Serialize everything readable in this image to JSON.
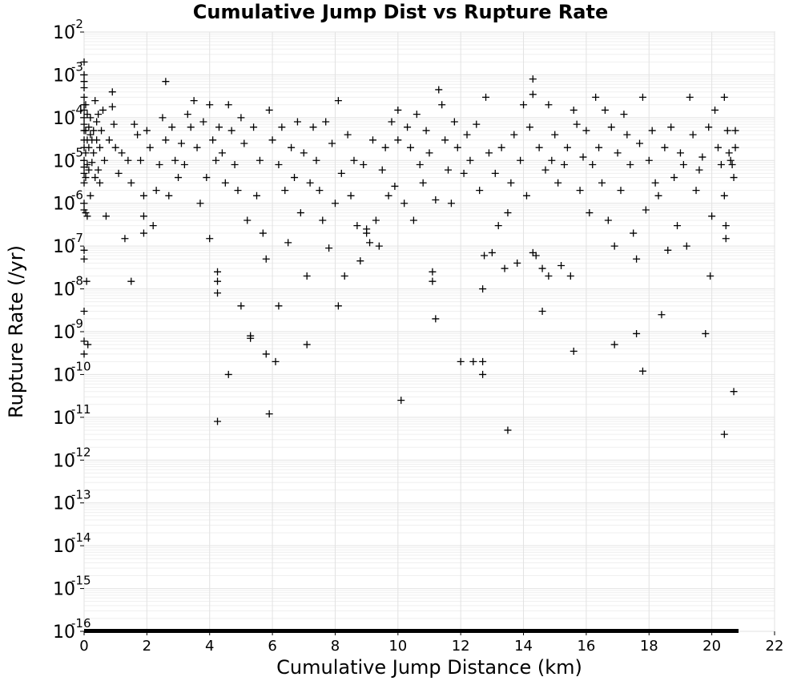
{
  "chart_data": {
    "type": "scatter",
    "title": "Cumulative Jump Dist vs Rupture Rate",
    "xlabel": "Cumulative Jump Distance (km)",
    "ylabel": "Rupture Rate (/yr)",
    "xlim": [
      0,
      22
    ],
    "ylim": [
      1e-16,
      0.01
    ],
    "yscale": "log",
    "grid": true,
    "marker": "+",
    "marker_color": "#000000",
    "xticks": [
      "0",
      "2",
      "4",
      "6",
      "8",
      "10",
      "12",
      "14",
      "16",
      "18",
      "20",
      "22"
    ],
    "yticks": [
      {
        "base": "10",
        "exp": "-2"
      },
      {
        "base": "10",
        "exp": "-3"
      },
      {
        "base": "10",
        "exp": "-4"
      },
      {
        "base": "10",
        "exp": "-5"
      },
      {
        "base": "10",
        "exp": "-6"
      },
      {
        "base": "10",
        "exp": "-7"
      },
      {
        "base": "10",
        "exp": "-8"
      },
      {
        "base": "10",
        "exp": "-9"
      },
      {
        "base": "10",
        "exp": "-10"
      },
      {
        "base": "10",
        "exp": "-11"
      },
      {
        "base": "10",
        "exp": "-12"
      },
      {
        "base": "10",
        "exp": "-13"
      },
      {
        "base": "10",
        "exp": "-14"
      },
      {
        "base": "10",
        "exp": "-15"
      },
      {
        "base": "10",
        "exp": "-16"
      }
    ],
    "points": [
      [
        0,
        0.002
      ],
      [
        0,
        0.001
      ],
      [
        0,
        0.0007
      ],
      [
        0,
        0.0005
      ],
      [
        0,
        0.0003
      ],
      [
        0,
        0.0002
      ],
      [
        0,
        0.00015
      ],
      [
        0,
        0.0001
      ],
      [
        0,
        7e-05
      ],
      [
        0,
        5e-05
      ],
      [
        0,
        3e-05
      ],
      [
        0,
        2e-05
      ],
      [
        0,
        1e-05
      ],
      [
        0,
        7e-06
      ],
      [
        0,
        5e-06
      ],
      [
        0,
        3e-06
      ],
      [
        0,
        1e-06
      ],
      [
        0,
        7e-07
      ],
      [
        0,
        8e-08
      ],
      [
        0,
        5e-08
      ],
      [
        0,
        3e-09
      ],
      [
        0,
        6e-10
      ],
      [
        0,
        3e-10
      ],
      [
        0.05,
        0.0002
      ],
      [
        0.05,
        5e-05
      ],
      [
        0.05,
        1.5e-05
      ],
      [
        0.05,
        4e-06
      ],
      [
        0.05,
        6e-07
      ],
      [
        0.08,
        1.5e-08
      ],
      [
        0.1,
        0.00012
      ],
      [
        0.1,
        3e-05
      ],
      [
        0.1,
        8e-06
      ],
      [
        0.1,
        5e-07
      ],
      [
        0.12,
        5e-10
      ],
      [
        0.15,
        6e-05
      ],
      [
        0.15,
        2e-05
      ],
      [
        0.15,
        6e-06
      ],
      [
        0.2,
        0.0001
      ],
      [
        0.2,
        4e-05
      ],
      [
        0.2,
        1.5e-06
      ],
      [
        0.25,
        3e-05
      ],
      [
        0.25,
        9e-06
      ],
      [
        0.3,
        5e-05
      ],
      [
        0.3,
        1.5e-05
      ],
      [
        0.35,
        0.00025
      ],
      [
        0.35,
        4e-06
      ],
      [
        0.4,
        8e-05
      ],
      [
        0.4,
        3e-05
      ],
      [
        0.45,
        0.00012
      ],
      [
        0.45,
        6e-06
      ],
      [
        0.5,
        2e-05
      ],
      [
        0.5,
        3e-06
      ],
      [
        0.55,
        5e-05
      ],
      [
        0.6,
        0.00015
      ],
      [
        0.65,
        1e-05
      ],
      [
        0.7,
        5e-07
      ],
      [
        0.8,
        3e-05
      ],
      [
        0.9,
        0.0004
      ],
      [
        0.9,
        0.00018
      ],
      [
        0.95,
        7e-05
      ],
      [
        1.0,
        2e-05
      ],
      [
        1.1,
        5e-06
      ],
      [
        1.2,
        1.5e-05
      ],
      [
        1.3,
        1.5e-07
      ],
      [
        1.4,
        1e-05
      ],
      [
        1.5,
        1.5e-08
      ],
      [
        1.5,
        3e-06
      ],
      [
        1.6,
        7e-05
      ],
      [
        1.7,
        4e-05
      ],
      [
        1.8,
        1e-05
      ],
      [
        1.9,
        5e-07
      ],
      [
        1.9,
        1.5e-06
      ],
      [
        1.9,
        2e-07
      ],
      [
        2.0,
        5e-05
      ],
      [
        2.1,
        2e-05
      ],
      [
        2.2,
        3e-07
      ],
      [
        2.3,
        2e-06
      ],
      [
        2.4,
        8e-06
      ],
      [
        2.5,
        0.0001
      ],
      [
        2.6,
        0.0007
      ],
      [
        2.6,
        3e-05
      ],
      [
        2.7,
        1.5e-06
      ],
      [
        2.8,
        6e-05
      ],
      [
        2.9,
        1e-05
      ],
      [
        3.0,
        4e-06
      ],
      [
        3.1,
        2.5e-05
      ],
      [
        3.2,
        8e-06
      ],
      [
        3.3,
        0.00012
      ],
      [
        3.4,
        6e-05
      ],
      [
        3.5,
        0.00025
      ],
      [
        3.6,
        2e-05
      ],
      [
        3.7,
        1e-06
      ],
      [
        3.8,
        8e-05
      ],
      [
        3.9,
        4e-06
      ],
      [
        4.0,
        1.5e-07
      ],
      [
        4.0,
        0.0002
      ],
      [
        4.1,
        3e-05
      ],
      [
        4.2,
        1e-05
      ],
      [
        4.25,
        2.5e-08
      ],
      [
        4.25,
        1.5e-08
      ],
      [
        4.25,
        8e-09
      ],
      [
        4.25,
        8e-12
      ],
      [
        4.3,
        6e-05
      ],
      [
        4.4,
        1.5e-05
      ],
      [
        4.5,
        3e-06
      ],
      [
        4.6,
        1e-10
      ],
      [
        4.6,
        0.0002
      ],
      [
        4.7,
        5e-05
      ],
      [
        4.8,
        8e-06
      ],
      [
        4.9,
        2e-06
      ],
      [
        5.0,
        4e-09
      ],
      [
        5.0,
        0.0001
      ],
      [
        5.1,
        2.5e-05
      ],
      [
        5.2,
        4e-07
      ],
      [
        5.3,
        8e-10
      ],
      [
        5.3,
        7e-10
      ],
      [
        5.4,
        6e-05
      ],
      [
        5.5,
        1.5e-06
      ],
      [
        5.6,
        1e-05
      ],
      [
        5.7,
        2e-07
      ],
      [
        5.8,
        5e-08
      ],
      [
        5.8,
        3e-10
      ],
      [
        5.9,
        1.2e-11
      ],
      [
        5.9,
        0.00015
      ],
      [
        6.0,
        3e-05
      ],
      [
        6.1,
        2e-10
      ],
      [
        6.2,
        4e-09
      ],
      [
        6.2,
        8e-06
      ],
      [
        6.3,
        6e-05
      ],
      [
        6.4,
        2e-06
      ],
      [
        6.5,
        1.2e-07
      ],
      [
        6.6,
        2e-05
      ],
      [
        6.7,
        4e-06
      ],
      [
        6.8,
        8e-05
      ],
      [
        6.9,
        6e-07
      ],
      [
        7.0,
        1.5e-05
      ],
      [
        7.1,
        5e-10
      ],
      [
        7.1,
        2e-08
      ],
      [
        7.2,
        3e-06
      ],
      [
        7.3,
        6e-05
      ],
      [
        7.4,
        1e-05
      ],
      [
        7.5,
        2e-06
      ],
      [
        7.6,
        4e-07
      ],
      [
        7.7,
        8e-05
      ],
      [
        7.8,
        9e-08
      ],
      [
        7.9,
        2.5e-05
      ],
      [
        8.0,
        1e-06
      ],
      [
        8.1,
        0.00025
      ],
      [
        8.1,
        4e-09
      ],
      [
        8.2,
        5e-06
      ],
      [
        8.3,
        2e-08
      ],
      [
        8.4,
        4e-05
      ],
      [
        8.5,
        1.5e-06
      ],
      [
        8.6,
        1e-05
      ],
      [
        8.7,
        3e-07
      ],
      [
        8.8,
        4.5e-08
      ],
      [
        8.9,
        8e-06
      ],
      [
        9.0,
        2e-07
      ],
      [
        9.0,
        2.5e-07
      ],
      [
        9.1,
        1.2e-07
      ],
      [
        9.2,
        3e-05
      ],
      [
        9.3,
        4e-07
      ],
      [
        9.4,
        1e-07
      ],
      [
        9.5,
        6e-06
      ],
      [
        9.6,
        2e-05
      ],
      [
        9.7,
        1.5e-06
      ],
      [
        9.8,
        8e-05
      ],
      [
        9.9,
        2.5e-06
      ],
      [
        10.0,
        0.00015
      ],
      [
        10.0,
        3e-05
      ],
      [
        10.1,
        2.5e-11
      ],
      [
        10.2,
        1e-06
      ],
      [
        10.3,
        6e-05
      ],
      [
        10.4,
        2e-05
      ],
      [
        10.5,
        4e-07
      ],
      [
        10.6,
        0.00012
      ],
      [
        10.7,
        8e-06
      ],
      [
        10.8,
        3e-06
      ],
      [
        10.9,
        5e-05
      ],
      [
        11.0,
        1.5e-05
      ],
      [
        11.1,
        2.5e-08
      ],
      [
        11.1,
        1.5e-08
      ],
      [
        11.2,
        2e-09
      ],
      [
        11.2,
        1.2e-06
      ],
      [
        11.3,
        0.00045
      ],
      [
        11.4,
        0.0002
      ],
      [
        11.5,
        3e-05
      ],
      [
        11.6,
        6e-06
      ],
      [
        11.7,
        1e-06
      ],
      [
        11.8,
        8e-05
      ],
      [
        11.9,
        2e-05
      ],
      [
        12.0,
        2e-10
      ],
      [
        12.1,
        5e-06
      ],
      [
        12.2,
        4e-05
      ],
      [
        12.3,
        1e-05
      ],
      [
        12.4,
        2e-10
      ],
      [
        12.5,
        7e-05
      ],
      [
        12.6,
        2e-06
      ],
      [
        12.7,
        2e-10
      ],
      [
        12.7,
        1e-10
      ],
      [
        12.7,
        1e-08
      ],
      [
        12.75,
        6e-08
      ],
      [
        12.8,
        0.0003
      ],
      [
        12.9,
        1.5e-05
      ],
      [
        13.0,
        7e-08
      ],
      [
        13.1,
        5e-06
      ],
      [
        13.2,
        3e-07
      ],
      [
        13.3,
        2e-05
      ],
      [
        13.4,
        3e-08
      ],
      [
        13.5,
        6e-07
      ],
      [
        13.5,
        5e-12
      ],
      [
        13.6,
        3e-06
      ],
      [
        13.7,
        4e-05
      ],
      [
        13.8,
        4e-08
      ],
      [
        13.9,
        1e-05
      ],
      [
        14.0,
        0.0002
      ],
      [
        14.1,
        1.5e-06
      ],
      [
        14.2,
        6e-05
      ],
      [
        14.3,
        0.0008
      ],
      [
        14.3,
        0.00035
      ],
      [
        14.3,
        7e-08
      ],
      [
        14.4,
        6e-08
      ],
      [
        14.5,
        2e-05
      ],
      [
        14.6,
        3e-08
      ],
      [
        14.6,
        3e-09
      ],
      [
        14.7,
        6e-06
      ],
      [
        14.8,
        0.0002
      ],
      [
        14.8,
        2e-08
      ],
      [
        14.9,
        1e-05
      ],
      [
        15.0,
        4e-05
      ],
      [
        15.1,
        3e-06
      ],
      [
        15.2,
        3.5e-08
      ],
      [
        15.3,
        8e-06
      ],
      [
        15.4,
        2e-05
      ],
      [
        15.5,
        2e-08
      ],
      [
        15.6,
        0.00015
      ],
      [
        15.6,
        3.5e-10
      ],
      [
        15.7,
        7e-05
      ],
      [
        15.8,
        2e-06
      ],
      [
        15.9,
        1.2e-05
      ],
      [
        16.0,
        5e-05
      ],
      [
        16.1,
        6e-07
      ],
      [
        16.2,
        8e-06
      ],
      [
        16.3,
        0.0003
      ],
      [
        16.4,
        2e-05
      ],
      [
        16.5,
        3e-06
      ],
      [
        16.6,
        0.00015
      ],
      [
        16.7,
        4e-07
      ],
      [
        16.8,
        6e-05
      ],
      [
        16.9,
        5e-10
      ],
      [
        16.9,
        1e-07
      ],
      [
        17.0,
        1.5e-05
      ],
      [
        17.1,
        2e-06
      ],
      [
        17.2,
        0.00012
      ],
      [
        17.3,
        4e-05
      ],
      [
        17.4,
        8e-06
      ],
      [
        17.5,
        2e-07
      ],
      [
        17.6,
        5e-08
      ],
      [
        17.6,
        9e-10
      ],
      [
        17.7,
        2.5e-05
      ],
      [
        17.8,
        1.2e-10
      ],
      [
        17.8,
        0.0003
      ],
      [
        17.9,
        7e-07
      ],
      [
        18.0,
        1e-05
      ],
      [
        18.1,
        5e-05
      ],
      [
        18.2,
        3e-06
      ],
      [
        18.3,
        1.5e-06
      ],
      [
        18.4,
        2.5e-09
      ],
      [
        18.5,
        2e-05
      ],
      [
        18.6,
        8e-08
      ],
      [
        18.7,
        6e-05
      ],
      [
        18.8,
        4e-06
      ],
      [
        18.9,
        3e-07
      ],
      [
        19.0,
        1.5e-05
      ],
      [
        19.1,
        8e-06
      ],
      [
        19.2,
        1e-07
      ],
      [
        19.3,
        0.0003
      ],
      [
        19.4,
        4e-05
      ],
      [
        19.5,
        2e-06
      ],
      [
        19.6,
        6e-06
      ],
      [
        19.7,
        1.2e-05
      ],
      [
        19.8,
        9e-10
      ],
      [
        19.9,
        6e-05
      ],
      [
        19.95,
        2e-08
      ],
      [
        20.0,
        5e-07
      ],
      [
        20.1,
        0.00015
      ],
      [
        20.2,
        2e-05
      ],
      [
        20.3,
        8e-06
      ],
      [
        20.4,
        1.5e-06
      ],
      [
        20.4,
        0.0003
      ],
      [
        20.4,
        4e-12
      ],
      [
        20.45,
        3e-07
      ],
      [
        20.45,
        1.5e-07
      ],
      [
        20.5,
        5e-05
      ],
      [
        20.55,
        1.5e-05
      ],
      [
        20.6,
        1e-05
      ],
      [
        20.65,
        8e-06
      ],
      [
        20.7,
        4e-06
      ],
      [
        20.7,
        4e-11
      ],
      [
        20.75,
        5e-05
      ],
      [
        20.75,
        2e-05
      ]
    ],
    "floor_value": 1e-16
  }
}
